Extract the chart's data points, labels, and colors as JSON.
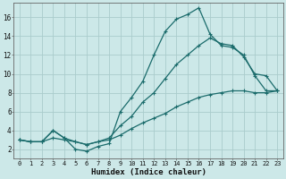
{
  "xlabel": "Humidex (Indice chaleur)",
  "bg_color": "#cce8e8",
  "grid_color": "#aacccc",
  "line_color": "#1a6b6b",
  "xlim": [
    -0.5,
    23.5
  ],
  "ylim": [
    1.0,
    17.5
  ],
  "yticks": [
    2,
    4,
    6,
    8,
    10,
    12,
    14,
    16
  ],
  "xticks": [
    0,
    1,
    2,
    3,
    4,
    5,
    6,
    7,
    8,
    9,
    10,
    11,
    12,
    13,
    14,
    15,
    16,
    17,
    18,
    19,
    20,
    21,
    22,
    23
  ],
  "curve1_x": [
    0,
    1,
    2,
    3,
    4,
    5,
    6,
    7,
    8,
    9,
    10,
    11,
    12,
    13,
    14,
    15,
    16,
    17,
    18,
    19,
    20,
    21,
    22,
    23
  ],
  "curve1_y": [
    3.0,
    2.8,
    2.8,
    4.0,
    3.2,
    2.0,
    1.8,
    2.3,
    2.6,
    6.0,
    7.5,
    9.2,
    12.0,
    14.5,
    15.8,
    16.3,
    17.0,
    14.2,
    13.0,
    12.8,
    12.0,
    9.8,
    8.2,
    8.2
  ],
  "curve2_x": [
    0,
    1,
    2,
    3,
    4,
    5,
    6,
    7,
    8,
    9,
    10,
    11,
    12,
    13,
    14,
    15,
    16,
    17,
    18,
    19,
    20,
    21,
    22,
    23
  ],
  "curve2_y": [
    3.0,
    2.8,
    2.8,
    4.0,
    3.2,
    2.8,
    2.5,
    2.8,
    3.2,
    4.5,
    5.5,
    7.0,
    8.0,
    9.5,
    11.0,
    12.0,
    13.0,
    13.8,
    13.2,
    13.0,
    11.8,
    10.0,
    9.8,
    8.2
  ],
  "curve3_x": [
    0,
    1,
    2,
    3,
    4,
    5,
    6,
    7,
    8,
    9,
    10,
    11,
    12,
    13,
    14,
    15,
    16,
    17,
    18,
    19,
    20,
    21,
    22,
    23
  ],
  "curve3_y": [
    3.0,
    2.8,
    2.8,
    3.2,
    3.0,
    2.8,
    2.5,
    2.8,
    3.0,
    3.5,
    4.2,
    4.8,
    5.3,
    5.8,
    6.5,
    7.0,
    7.5,
    7.8,
    8.0,
    8.2,
    8.2,
    8.0,
    8.0,
    8.2
  ],
  "tick_fontsize": 5.0,
  "xlabel_fontsize": 6.5
}
